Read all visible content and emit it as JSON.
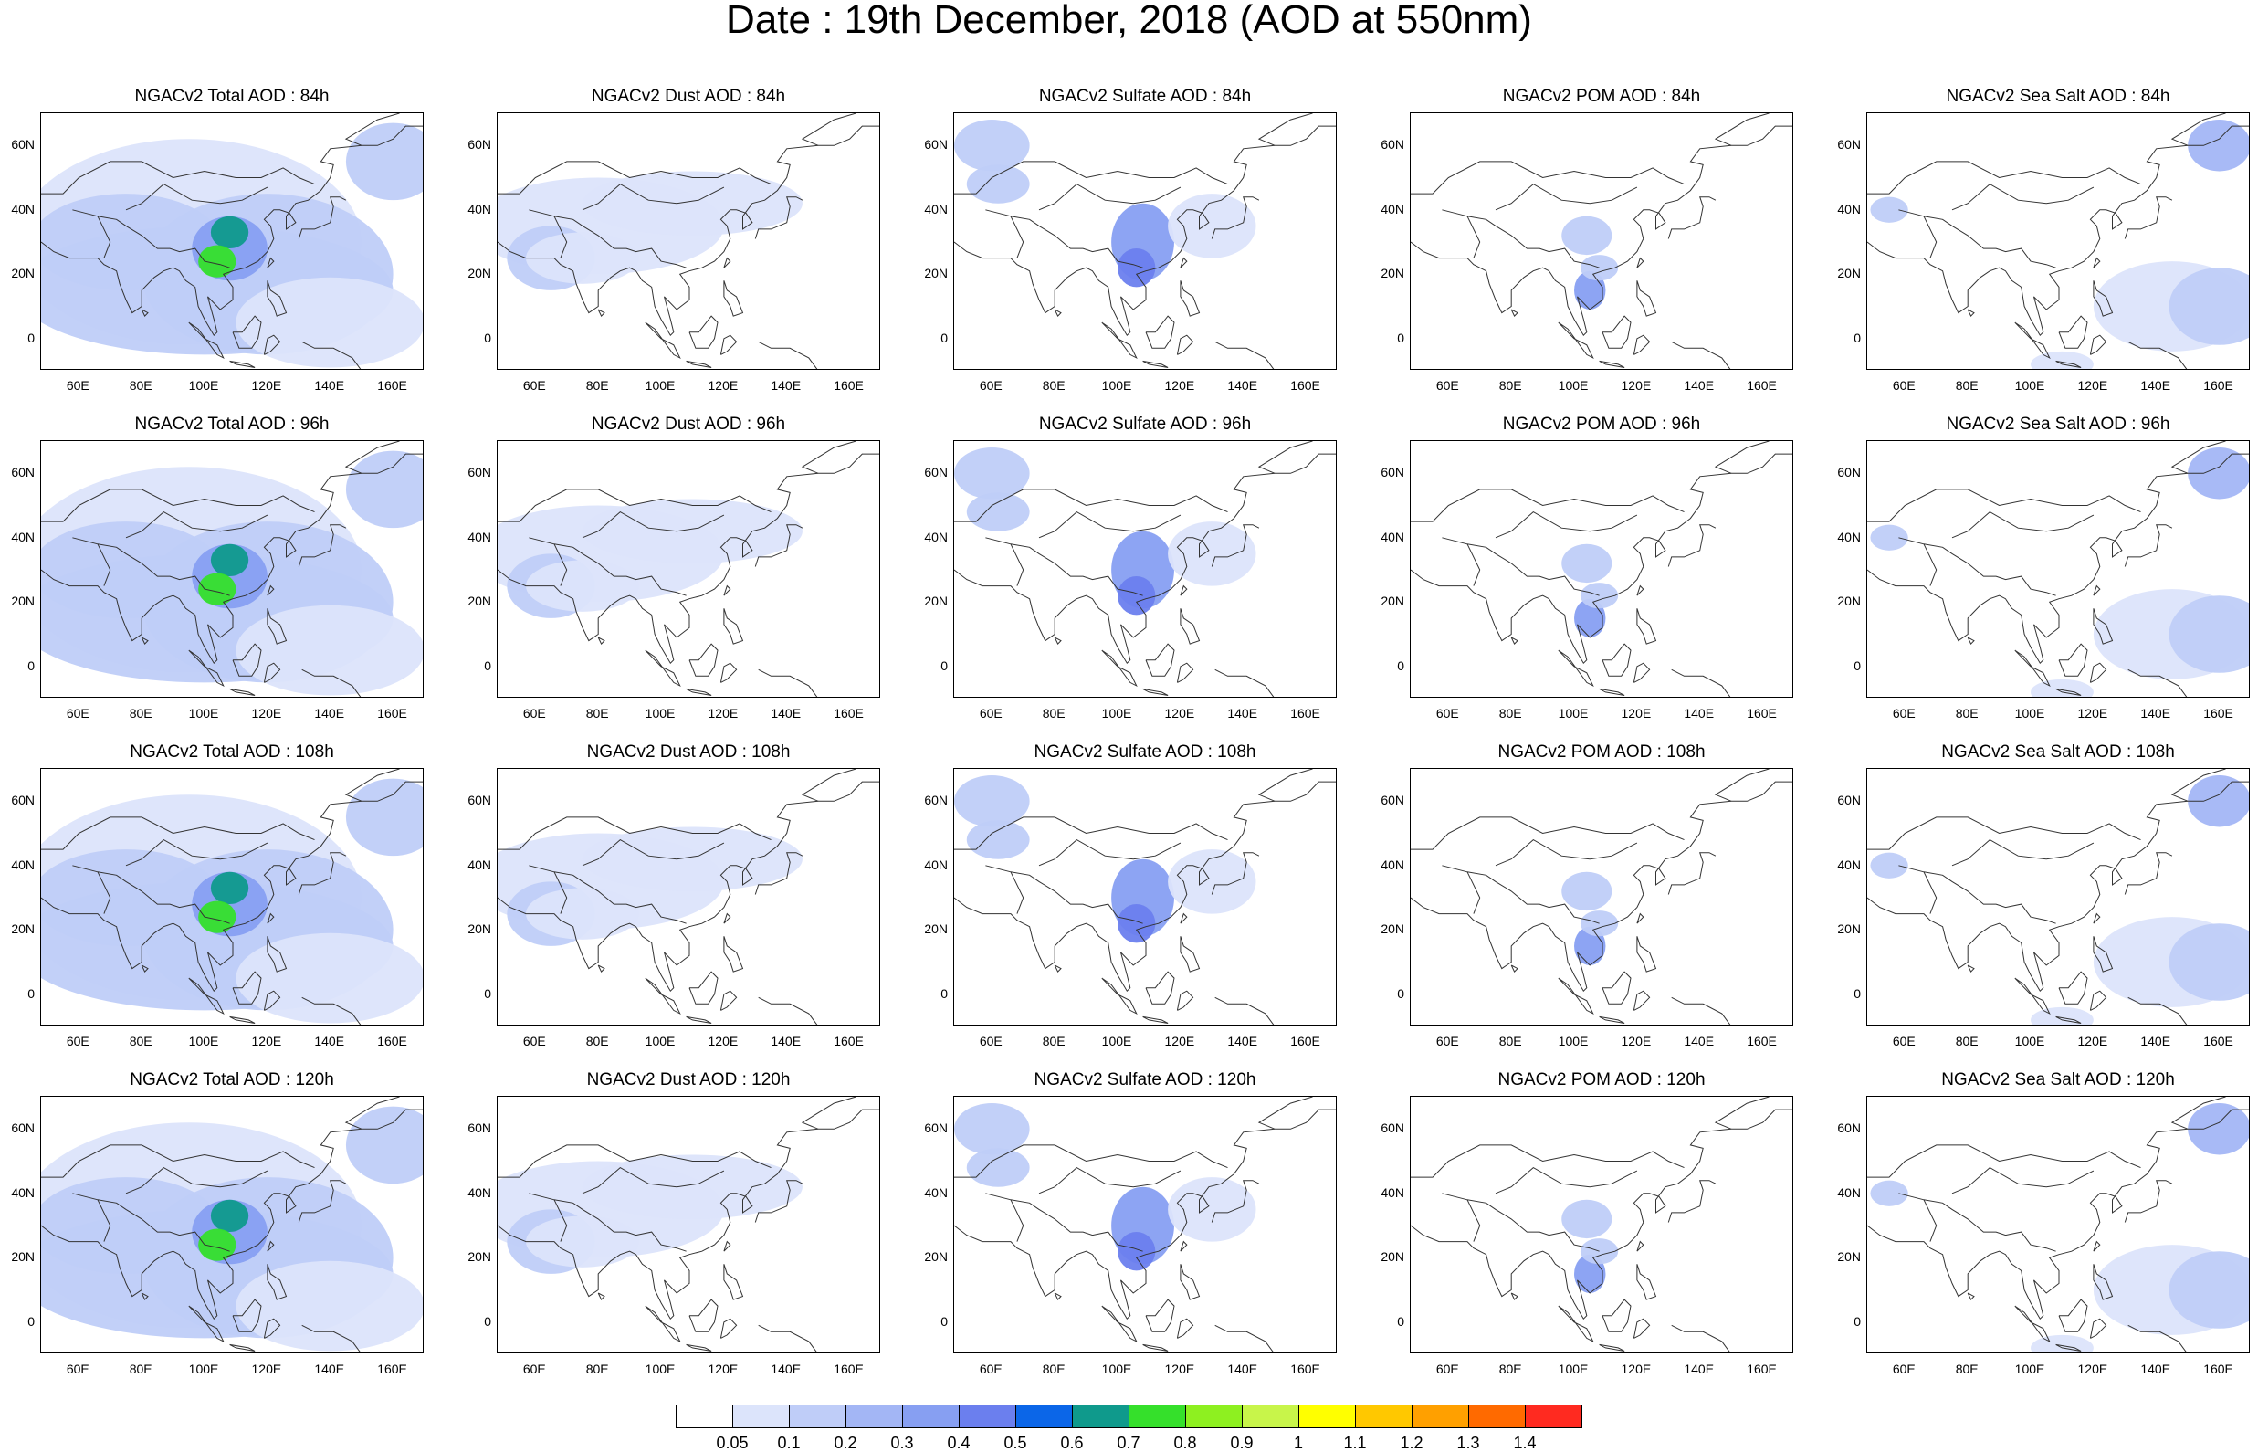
{
  "title": "Date : 19th December, 2018 (AOD at 550nm)",
  "lat_ticks": [
    "60N",
    "40N",
    "20N",
    "0"
  ],
  "lon_ticks": [
    "60E",
    "80E",
    "100E",
    "120E",
    "140E",
    "160E"
  ],
  "rows": [
    {
      "lead": "84h",
      "titles": [
        "NGACv2 Total AOD : 84h",
        "NGACv2 Dust AOD : 84h",
        "NGACv2 Sulfate AOD : 84h",
        "NGACv2 POM AOD : 84h",
        "NGACv2 Sea Salt AOD : 84h"
      ]
    },
    {
      "lead": "96h",
      "titles": [
        "NGACv2 Total AOD : 96h",
        "NGACv2 Dust AOD : 96h",
        "NGACv2 Sulfate AOD : 96h",
        "NGACv2 POM AOD : 96h",
        "NGACv2 Sea Salt AOD : 96h"
      ]
    },
    {
      "lead": "108h",
      "titles": [
        "NGACv2 Total AOD : 108h",
        "NGACv2 Dust AOD : 108h",
        "NGACv2 Sulfate AOD : 108h",
        "NGACv2 POM AOD : 108h",
        "NGACv2 Sea Salt AOD : 108h"
      ]
    },
    {
      "lead": "120h",
      "titles": [
        "NGACv2 Total AOD : 120h",
        "NGACv2 Dust AOD : 120h",
        "NGACv2 Sulfate AOD : 120h",
        "NGACv2 POM AOD : 120h",
        "NGACv2 Sea Salt  AOD : 120h"
      ]
    }
  ],
  "species": [
    "Total",
    "Dust",
    "Sulfate",
    "POM",
    "Sea Salt"
  ],
  "colorbar": {
    "labels": [
      "0.05",
      "0.1",
      "0.2",
      "0.3",
      "0.4",
      "0.5",
      "0.6",
      "0.7",
      "0.8",
      "0.9",
      "1",
      "1.1",
      "1.2",
      "1.3",
      "1.4"
    ],
    "colors": [
      "#ffffff",
      "#dce4fb",
      "#bfcdf8",
      "#a3b6f5",
      "#879ff2",
      "#6b7fee",
      "#0b66e8",
      "#0f9a8c",
      "#35e02b",
      "#8ef020",
      "#c8f54a",
      "#ffff00",
      "#ffc800",
      "#ffa000",
      "#ff6a00",
      "#ff2a20"
    ]
  }
}
